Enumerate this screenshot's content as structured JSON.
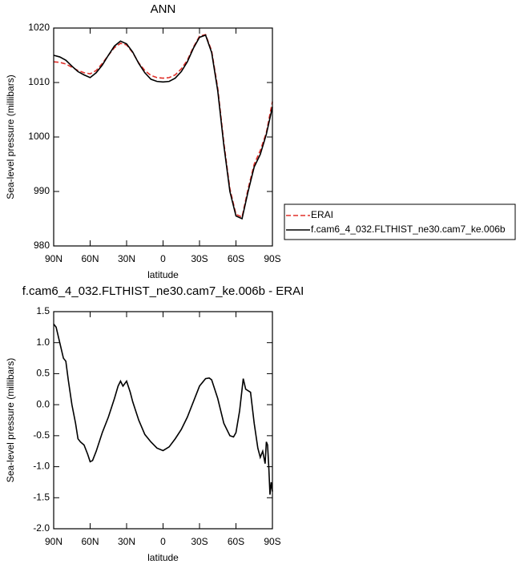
{
  "chart_data": [
    {
      "type": "line",
      "title": "ANN",
      "x_label": "latitude",
      "y_label": "Sea-level pressure (millibars)",
      "x": [
        90,
        85,
        80,
        75,
        70,
        65,
        60,
        55,
        50,
        45,
        40,
        35,
        30,
        25,
        20,
        15,
        10,
        5,
        0,
        -5,
        -10,
        -15,
        -20,
        -25,
        -30,
        -35,
        -40,
        -45,
        -50,
        -55,
        -60,
        -65,
        -70,
        -75,
        -80,
        -85,
        -90
      ],
      "series": [
        {
          "name": "ERAI",
          "color": "#e0302a",
          "dash": true,
          "values": [
            1013.8,
            1013.7,
            1013.4,
            1012.8,
            1012.2,
            1011.8,
            1011.6,
            1012.2,
            1013.5,
            1015.0,
            1016.4,
            1017.2,
            1016.9,
            1015.5,
            1013.6,
            1012.2,
            1011.3,
            1010.9,
            1010.8,
            1010.9,
            1011.4,
            1012.5,
            1014.1,
            1016.5,
            1018.5,
            1018.8,
            1015.8,
            1009.0,
            999.0,
            990.5,
            985.8,
            985.3,
            990.5,
            995.0,
            997.5,
            1000.8,
            1006.5
          ]
        },
        {
          "name": "f.cam6_4_032.FLTHIST_ne30.cam7_ke.006b",
          "color": "#000000",
          "dash": false,
          "values": [
            1015.0,
            1014.7,
            1014.1,
            1013.0,
            1012.0,
            1011.4,
            1010.9,
            1011.8,
            1013.2,
            1015.0,
            1016.7,
            1017.6,
            1017.1,
            1015.6,
            1013.5,
            1011.8,
            1010.6,
            1010.2,
            1010.1,
            1010.2,
            1010.8,
            1012.0,
            1013.8,
            1016.3,
            1018.3,
            1018.7,
            1015.5,
            1008.5,
            998.5,
            990.0,
            985.5,
            985.0,
            990.0,
            994.5,
            996.8,
            1000.5,
            1005.5
          ]
        }
      ],
      "xlim": [
        90,
        -90
      ],
      "xticks": [
        {
          "value": 90,
          "label": "90N"
        },
        {
          "value": 60,
          "label": "60N"
        },
        {
          "value": 30,
          "label": "30N"
        },
        0,
        {
          "value": -30,
          "label": "30S"
        },
        {
          "value": -60,
          "label": "60S"
        },
        {
          "value": -90,
          "label": "90S"
        }
      ],
      "ylim": [
        980,
        1020
      ],
      "yticks": [
        980,
        990,
        1000,
        1010,
        1020
      ],
      "legend": "outside-right"
    },
    {
      "type": "line",
      "title": "f.cam6_4_032.FLTHIST_ne30.cam7_ke.006b - ERAI",
      "x_label": "latitude",
      "y_label": "Sea-level pressure (millibars)",
      "x": [
        90,
        88,
        85,
        82,
        80,
        78,
        75,
        72,
        70,
        68,
        65,
        62,
        60,
        58,
        55,
        50,
        45,
        40,
        37,
        35,
        33,
        30,
        27,
        25,
        20,
        15,
        10,
        5,
        0,
        -5,
        -10,
        -15,
        -20,
        -25,
        -30,
        -35,
        -38,
        -40,
        -45,
        -50,
        -55,
        -58,
        -60,
        -63,
        -66,
        -68,
        -72,
        -75,
        -78,
        -80,
        -82,
        -84,
        -85,
        -86,
        -87,
        -88,
        -89,
        -90
      ],
      "values": [
        1.3,
        1.25,
        1.0,
        0.75,
        0.7,
        0.4,
        0.0,
        -0.3,
        -0.55,
        -0.6,
        -0.65,
        -0.8,
        -0.92,
        -0.9,
        -0.75,
        -0.45,
        -0.2,
        0.1,
        0.3,
        0.38,
        0.3,
        0.38,
        0.2,
        0.05,
        -0.25,
        -0.48,
        -0.6,
        -0.7,
        -0.74,
        -0.68,
        -0.55,
        -0.4,
        -0.2,
        0.05,
        0.3,
        0.42,
        0.43,
        0.4,
        0.1,
        -0.3,
        -0.5,
        -0.52,
        -0.45,
        -0.1,
        0.42,
        0.25,
        0.2,
        -0.3,
        -0.7,
        -0.85,
        -0.75,
        -0.95,
        -0.6,
        -0.65,
        -1.0,
        -1.45,
        -1.25,
        -1.4
      ],
      "color": "#000000",
      "xlim": [
        90,
        -90
      ],
      "xticks": [
        {
          "value": 90,
          "label": "90N"
        },
        {
          "value": 60,
          "label": "60N"
        },
        {
          "value": 30,
          "label": "30N"
        },
        0,
        {
          "value": -30,
          "label": "30S"
        },
        {
          "value": -60,
          "label": "60S"
        },
        {
          "value": -90,
          "label": "90S"
        }
      ],
      "ylim": [
        -2.0,
        1.5
      ],
      "yticks": [
        {
          "value": -2.0,
          "label": "-2.0"
        },
        -1.5,
        {
          "value": -1.0,
          "label": "-1.0"
        },
        -0.5,
        {
          "value": 0,
          "label": "0.0"
        },
        0.5,
        {
          "value": 1.0,
          "label": "1.0"
        },
        1.5
      ]
    }
  ]
}
